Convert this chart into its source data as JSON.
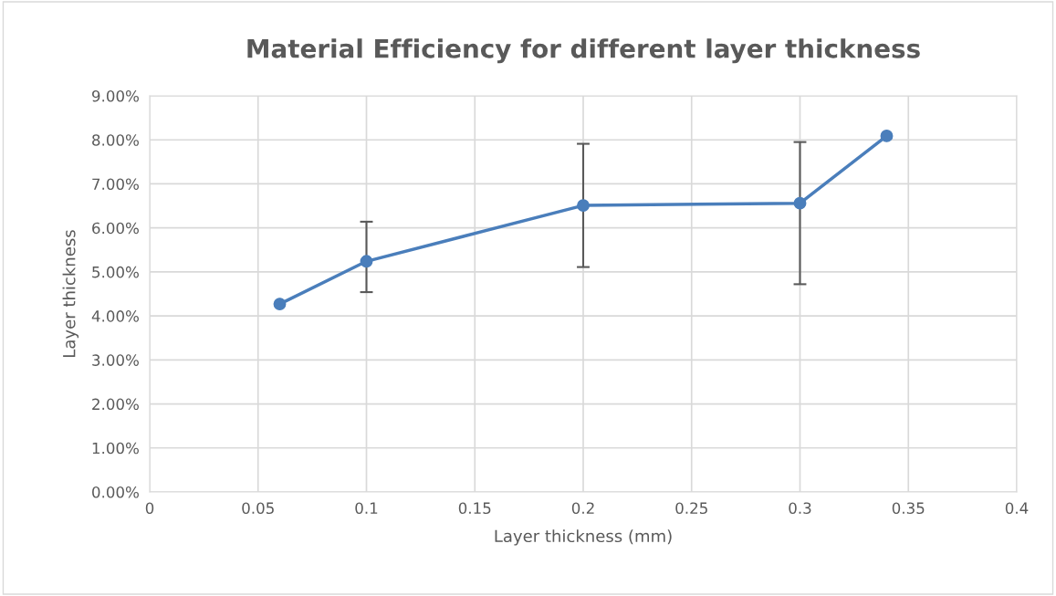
{
  "chart_data": {
    "type": "line",
    "title": "Material Efficiency for different layer thickness",
    "xlabel": "Layer thickness (mm)",
    "ylabel": "Layer thickness",
    "x": [
      0.06,
      0.1,
      0.2,
      0.3,
      0.34
    ],
    "series": [
      {
        "color": "#4a7ebb",
        "values": [
          4.27,
          5.24,
          6.51,
          6.56,
          8.09
        ],
        "errors": [
          null,
          [
            4.54,
            6.14
          ],
          1.4,
          [
            4.72,
            7.95
          ],
          null
        ]
      }
    ],
    "marker": "circle",
    "line_style": "solid",
    "grid": true,
    "legend": false,
    "xlim": [
      0,
      0.4
    ],
    "xticks": [
      0,
      0.05,
      0.1,
      0.15,
      0.2,
      0.25,
      0.3,
      0.35,
      0.4
    ],
    "ylim": [
      0,
      9
    ],
    "yticks": [
      {
        "value": 0,
        "label": "0.00%"
      },
      {
        "value": 1,
        "label": "1.00%"
      },
      {
        "value": 2,
        "label": "2.00%"
      },
      {
        "value": 3,
        "label": "3.00%"
      },
      {
        "value": 4,
        "label": "4.00%"
      },
      {
        "value": 5,
        "label": "5.00%"
      },
      {
        "value": 6,
        "label": "6.00%"
      },
      {
        "value": 7,
        "label": "7.00%"
      },
      {
        "value": 8,
        "label": "8.00%"
      },
      {
        "value": 9,
        "label": "9.00%"
      }
    ]
  }
}
